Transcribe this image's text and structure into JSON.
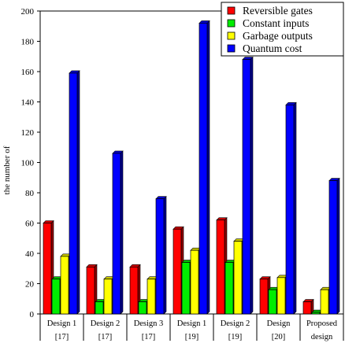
{
  "chart_data": {
    "type": "bar",
    "ylabel": "the number of",
    "ylim": [
      0,
      200
    ],
    "yticks": [
      0,
      20,
      40,
      60,
      80,
      100,
      120,
      140,
      160,
      180,
      200
    ],
    "categories": [
      [
        "Design 1",
        "[17]"
      ],
      [
        "Design 2",
        "[17]"
      ],
      [
        "Design 3",
        "[17]"
      ],
      [
        "Design 1",
        "[19]"
      ],
      [
        "Design 2",
        "[19]"
      ],
      [
        "Design",
        "[20]"
      ],
      [
        "Proposed",
        "design"
      ]
    ],
    "series": [
      {
        "name": "Reversible gates",
        "color": "#ff0000",
        "values": [
          60,
          31,
          31,
          56,
          62,
          23,
          8
        ]
      },
      {
        "name": "Constant inputs",
        "color": "#00ee00",
        "values": [
          23,
          8,
          8,
          34,
          34,
          16,
          1
        ]
      },
      {
        "name": "Garbage outputs",
        "color": "#ffff00",
        "values": [
          38,
          23,
          23,
          42,
          48,
          24,
          16
        ]
      },
      {
        "name": "Quantum cost",
        "color": "#0000ff",
        "values": [
          159,
          106,
          76,
          192,
          168,
          138,
          88
        ]
      }
    ],
    "legend_position": "top-right",
    "grid": false
  }
}
